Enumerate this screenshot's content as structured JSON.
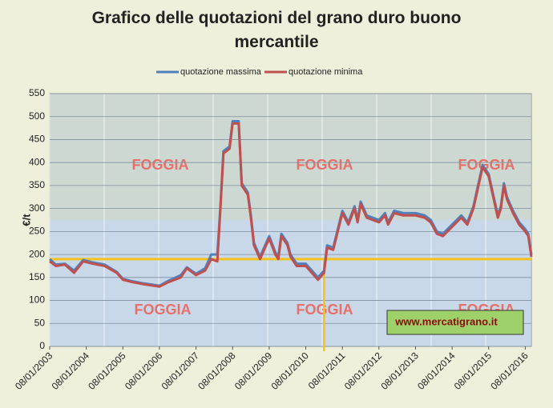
{
  "chart_data": {
    "type": "line",
    "title": "Grafico delle quotazioni del grano duro buono mercantile",
    "y_label": "€/t",
    "x": [
      "08/01/2003",
      "08/03/2003",
      "08/06/2003",
      "08/09/2003",
      "08/12/2003",
      "08/03/2004",
      "08/07/2004",
      "08/11/2004",
      "08/01/2005",
      "08/04/2005",
      "08/08/2005",
      "08/01/2006",
      "08/04/2006",
      "08/08/2006",
      "08/10/2006",
      "08/01/2007",
      "08/04/2007",
      "08/06/2007",
      "08/08/2007",
      "08/09/2007",
      "08/10/2007",
      "08/12/2007",
      "08/01/2008",
      "08/03/2008",
      "08/04/2008",
      "08/06/2008",
      "08/07/2008",
      "08/08/2008",
      "08/10/2008",
      "08/01/2009",
      "08/03/2009",
      "08/04/2009",
      "08/05/2009",
      "08/07/2009",
      "08/08/2009",
      "08/10/2009",
      "08/01/2010",
      "08/03/2010",
      "08/05/2010",
      "08/07/2010",
      "08/08/2010",
      "08/10/2010",
      "08/01/2011",
      "08/03/2011",
      "08/05/2011",
      "08/06/2011",
      "08/07/2011",
      "08/09/2011",
      "08/01/2012",
      "08/03/2012",
      "08/04/2012",
      "08/06/2012",
      "08/09/2012",
      "08/01/2013",
      "08/04/2013",
      "08/06/2013",
      "08/08/2013",
      "08/10/2013",
      "08/01/2014",
      "08/04/2014",
      "08/06/2014",
      "08/08/2014",
      "08/09/2014",
      "08/11/2014",
      "08/01/2015",
      "08/02/2015",
      "08/03/2015",
      "08/04/2015",
      "08/05/2015",
      "08/06/2015",
      "08/07/2015",
      "08/09/2015",
      "08/11/2015",
      "08/01/2016",
      "08/02/2016",
      "08/03/2016"
    ],
    "series": [
      {
        "name": "quotazione massima",
        "color": "#4f81bd",
        "values": [
          190,
          178,
          180,
          165,
          188,
          183,
          178,
          162,
          147,
          142,
          137,
          132,
          143,
          155,
          172,
          158,
          170,
          200,
          200,
          305,
          425,
          435,
          490,
          490,
          355,
          335,
          285,
          225,
          195,
          240,
          205,
          195,
          245,
          225,
          200,
          180,
          180,
          165,
          150,
          165,
          220,
          215,
          295,
          270,
          305,
          275,
          315,
          285,
          275,
          290,
          270,
          295,
          290,
          290,
          285,
          275,
          250,
          245,
          265,
          285,
          270,
          305,
          335,
          395,
          375,
          345,
          315,
          285,
          305,
          355,
          325,
          295,
          270,
          255,
          245,
          200
        ]
      },
      {
        "name": "quotazione minima",
        "color": "#c0504d",
        "values": [
          185,
          175,
          178,
          160,
          185,
          180,
          175,
          160,
          145,
          140,
          135,
          130,
          140,
          150,
          170,
          155,
          165,
          190,
          185,
          300,
          420,
          430,
          485,
          485,
          350,
          330,
          280,
          220,
          190,
          235,
          200,
          190,
          240,
          220,
          195,
          175,
          175,
          160,
          145,
          160,
          215,
          210,
          290,
          265,
          300,
          270,
          310,
          280,
          270,
          285,
          265,
          290,
          285,
          285,
          280,
          270,
          245,
          240,
          260,
          280,
          265,
          300,
          330,
          390,
          370,
          340,
          310,
          280,
          300,
          350,
          320,
          290,
          265,
          250,
          240,
          195
        ]
      }
    ],
    "xlim": [
      "08/01/2003",
      "08/03/2016"
    ],
    "xticks": [
      "08/01/2003",
      "08/01/2004",
      "08/01/2005",
      "08/01/2006",
      "08/01/2007",
      "08/01/2008",
      "08/01/2009",
      "08/01/2010",
      "08/01/2011",
      "08/01/2012",
      "08/01/2013",
      "08/01/2014",
      "08/01/2015",
      "08/01/2016"
    ],
    "ylim": [
      0,
      550
    ],
    "yticks": [
      0,
      50,
      100,
      150,
      200,
      250,
      300,
      350,
      400,
      450,
      500,
      550
    ],
    "grid": true,
    "legend": "top",
    "reference_y": 190,
    "reference_x": "08/07/2010",
    "reference_color": "#f5c21b",
    "watermarks": [
      "FOGGIA",
      "FOGGIA",
      "FOGGIA",
      "FOGGIA",
      "FOGGIA",
      "FOGGIA"
    ],
    "website": "www.mercatigrano.it"
  }
}
